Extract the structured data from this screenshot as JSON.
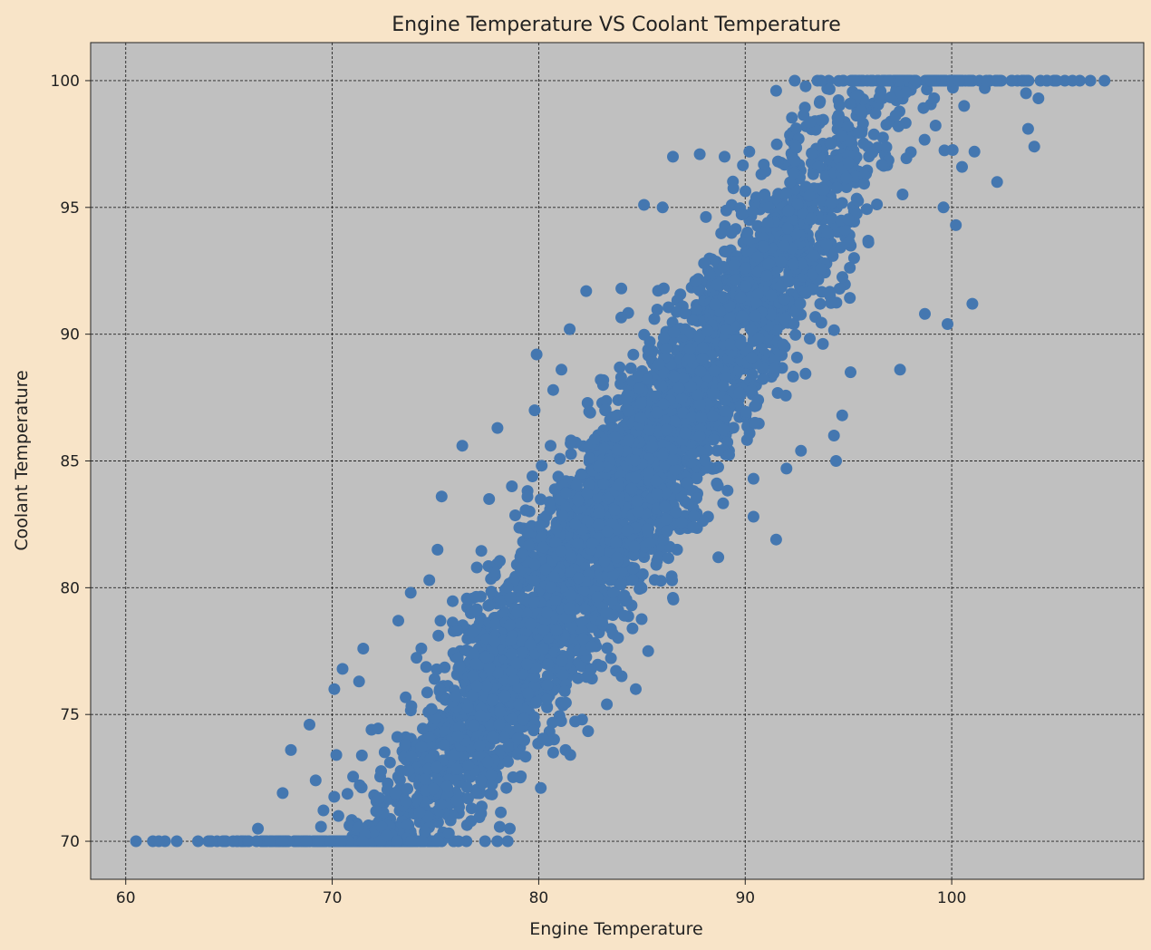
{
  "chart_data": {
    "type": "scatter",
    "title": "Engine Temperature VS Coolant Temperature",
    "xlabel": "Engine Temperature",
    "ylabel": "Coolant Temperature",
    "xlim": [
      58.3,
      109.3
    ],
    "ylim": [
      68.5,
      101.5
    ],
    "xticks": [
      60,
      70,
      80,
      90,
      100
    ],
    "yticks": [
      70,
      75,
      80,
      85,
      90,
      95,
      100
    ],
    "grid": true,
    "legend": "none",
    "clip_range": [
      70,
      100
    ],
    "colors": {
      "figure_bg": "#f8e4c8",
      "axes_bg": "#c0c0c0",
      "marker": "#4477b0",
      "grid": "#222222"
    },
    "series": [
      {
        "values": [
          [
            60.5,
            70
          ],
          [
            61.9,
            70
          ],
          [
            63.5,
            70
          ],
          [
            64.0,
            70
          ],
          [
            64.8,
            70
          ],
          [
            65.6,
            70
          ],
          [
            66.4,
            70.5
          ],
          [
            67.5,
            70
          ],
          [
            68.2,
            70
          ],
          [
            69.3,
            70
          ],
          [
            70.6,
            70
          ],
          [
            71.7,
            70
          ],
          [
            72.9,
            70
          ],
          [
            74.1,
            70
          ],
          [
            75.3,
            70
          ],
          [
            76.5,
            70
          ],
          [
            77.4,
            70
          ],
          [
            78.5,
            70
          ],
          [
            78.6,
            70.5
          ],
          [
            67.6,
            71.9
          ],
          [
            68.0,
            73.6
          ],
          [
            68.9,
            74.6
          ],
          [
            69.2,
            72.4
          ],
          [
            70.1,
            76.0
          ],
          [
            70.2,
            73.4
          ],
          [
            70.5,
            76.8
          ],
          [
            71.3,
            76.3
          ],
          [
            71.5,
            77.6
          ],
          [
            71.9,
            74.4
          ],
          [
            70.3,
            71.0
          ],
          [
            76.3,
            85.6
          ],
          [
            75.3,
            83.6
          ],
          [
            75.1,
            81.5
          ],
          [
            74.7,
            80.3
          ],
          [
            73.8,
            79.8
          ],
          [
            73.2,
            78.7
          ],
          [
            77.6,
            83.5
          ],
          [
            77.0,
            80.8
          ],
          [
            78.0,
            86.3
          ],
          [
            79.9,
            89.2
          ],
          [
            79.8,
            87.0
          ],
          [
            78.7,
            84.0
          ],
          [
            76.2,
            77.5
          ],
          [
            77.5,
            76.7
          ],
          [
            78.2,
            75.3
          ],
          [
            79.1,
            73.7
          ],
          [
            80.1,
            72.1
          ],
          [
            80.7,
            73.5
          ],
          [
            79.7,
            76.0
          ],
          [
            81.3,
            73.6
          ],
          [
            82.1,
            74.8
          ],
          [
            83.3,
            75.4
          ],
          [
            84.7,
            76.0
          ],
          [
            85.3,
            77.5
          ],
          [
            84.5,
            79.3
          ],
          [
            86.5,
            79.6
          ],
          [
            86.7,
            81.5
          ],
          [
            86.0,
            83.4
          ],
          [
            88.2,
            82.8
          ],
          [
            88.7,
            81.2
          ],
          [
            90.4,
            82.8
          ],
          [
            91.5,
            81.9
          ],
          [
            90.4,
            84.3
          ],
          [
            92.0,
            84.7
          ],
          [
            92.7,
            85.4
          ],
          [
            94.4,
            85.0
          ],
          [
            94.3,
            86.0
          ],
          [
            94.7,
            86.8
          ],
          [
            95.1,
            88.5
          ],
          [
            97.5,
            88.6
          ],
          [
            98.7,
            90.8
          ],
          [
            99.8,
            90.4
          ],
          [
            101.0,
            91.2
          ],
          [
            100.2,
            94.3
          ],
          [
            99.6,
            95.0
          ],
          [
            100.5,
            96.6
          ],
          [
            101.1,
            97.2
          ],
          [
            102.2,
            96.0
          ],
          [
            103.7,
            98.1
          ],
          [
            104.0,
            97.4
          ],
          [
            104.2,
            99.3
          ],
          [
            103.6,
            99.5
          ],
          [
            101.6,
            99.7
          ],
          [
            100.6,
            99.0
          ],
          [
            101.0,
            100
          ],
          [
            102.4,
            100
          ],
          [
            103.4,
            100
          ],
          [
            104.3,
            100
          ],
          [
            105.0,
            100
          ],
          [
            106.2,
            100
          ],
          [
            107.4,
            100
          ],
          [
            99.0,
            100
          ],
          [
            97.2,
            100
          ],
          [
            95.2,
            100
          ],
          [
            93.5,
            100
          ],
          [
            92.4,
            100
          ],
          [
            91.5,
            99.6
          ],
          [
            90.2,
            97.2
          ],
          [
            89.0,
            97.0
          ],
          [
            87.8,
            97.1
          ],
          [
            86.5,
            97.0
          ],
          [
            85.1,
            95.1
          ],
          [
            86.0,
            95.0
          ],
          [
            84.0,
            91.8
          ],
          [
            82.3,
            91.7
          ],
          [
            81.5,
            90.2
          ],
          [
            80.7,
            87.8
          ],
          [
            81.1,
            88.6
          ],
          [
            83.0,
            88.2
          ],
          [
            85.6,
            90.6
          ],
          [
            88.2,
            92.5
          ],
          [
            90.2,
            94.5
          ],
          [
            92.6,
            96.6
          ],
          [
            94.5,
            98.1
          ],
          [
            96.2,
            99.1
          ]
        ]
      }
    ]
  }
}
